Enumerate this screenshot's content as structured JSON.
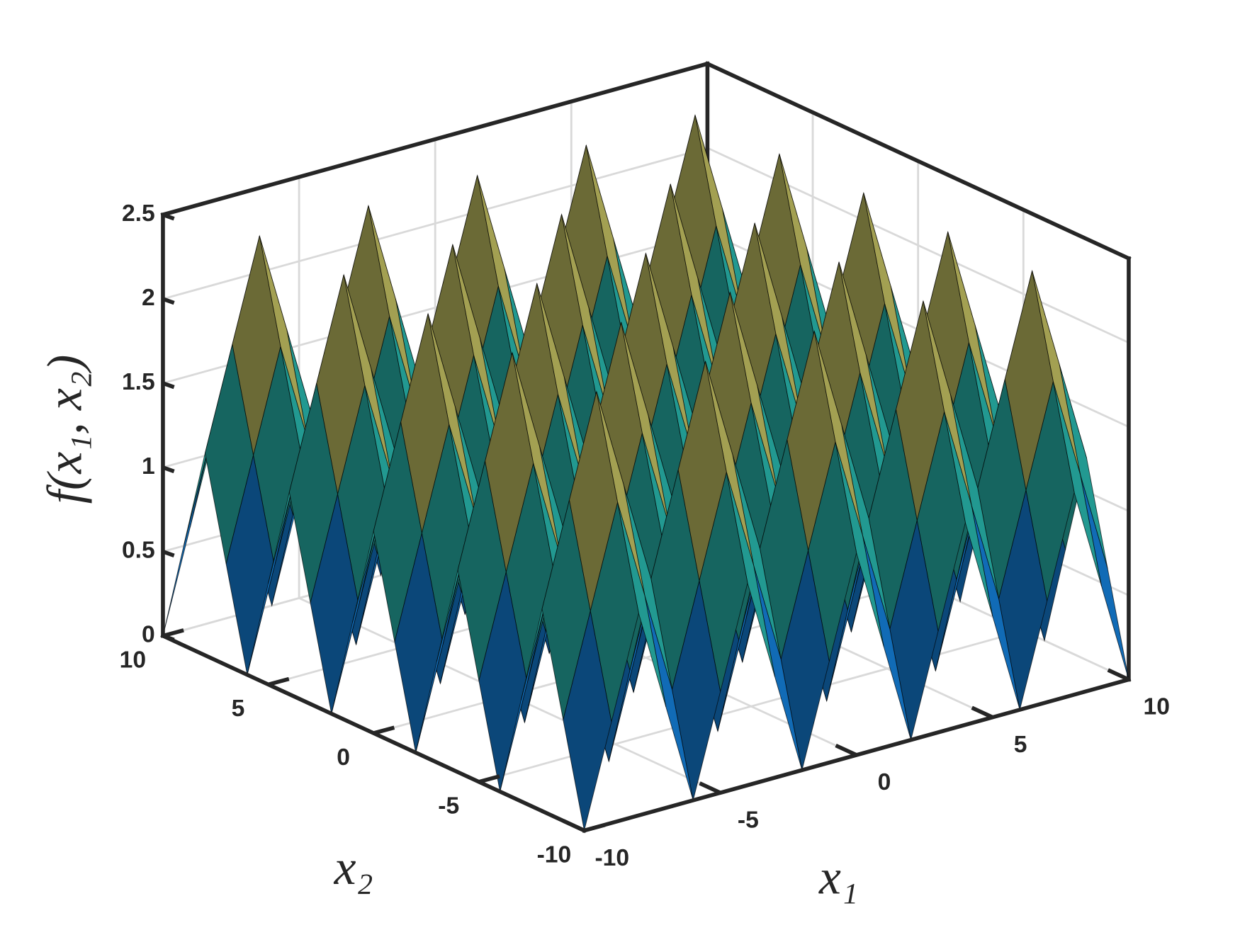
{
  "chart_data": {
    "type": "surface",
    "x1": [
      -10,
      -9,
      -8,
      -7,
      -6,
      -5,
      -4,
      -3,
      -2,
      -1,
      0,
      1,
      2,
      3,
      4,
      5,
      6,
      7,
      8,
      9,
      10
    ],
    "x2": [
      -10,
      -9,
      -8,
      -7,
      -6,
      -5,
      -4,
      -3,
      -2,
      -1,
      0,
      1,
      2,
      3,
      4,
      5,
      6,
      7,
      8,
      9,
      10
    ],
    "z": [
      [
        0,
        0.6,
        1.2,
        0.6,
        0,
        0.6,
        1.2,
        0.6,
        0,
        0.6,
        1.2,
        0.6,
        0,
        0.6,
        1.2,
        0.6,
        0,
        0.6,
        1.2,
        0.6,
        0
      ],
      [
        0.6,
        1.2,
        1.8,
        1.2,
        0.6,
        1.2,
        1.8,
        1.2,
        0.6,
        1.2,
        1.8,
        1.2,
        0.6,
        1.2,
        1.8,
        1.2,
        0.6,
        1.2,
        1.8,
        1.2,
        0.6
      ],
      [
        1.2,
        1.8,
        2.4,
        1.8,
        1.2,
        1.8,
        2.4,
        1.8,
        1.2,
        1.8,
        2.4,
        1.8,
        1.2,
        1.8,
        2.4,
        1.8,
        1.2,
        1.8,
        2.4,
        1.8,
        1.2
      ],
      [
        0.6,
        1.2,
        1.8,
        1.2,
        0.6,
        1.2,
        1.8,
        1.2,
        0.6,
        1.2,
        1.8,
        1.2,
        0.6,
        1.2,
        1.8,
        1.2,
        0.6,
        1.2,
        1.8,
        1.2,
        0.6
      ],
      [
        0,
        0.6,
        1.2,
        0.6,
        0,
        0.6,
        1.2,
        0.6,
        0,
        0.6,
        1.2,
        0.6,
        0,
        0.6,
        1.2,
        0.6,
        0,
        0.6,
        1.2,
        0.6,
        0
      ],
      [
        0.6,
        1.2,
        1.8,
        1.2,
        0.6,
        1.2,
        1.8,
        1.2,
        0.6,
        1.2,
        1.8,
        1.2,
        0.6,
        1.2,
        1.8,
        1.2,
        0.6,
        1.2,
        1.8,
        1.2,
        0.6
      ],
      [
        1.2,
        1.8,
        2.4,
        1.8,
        1.2,
        1.8,
        2.4,
        1.8,
        1.2,
        1.8,
        2.4,
        1.8,
        1.2,
        1.8,
        2.4,
        1.8,
        1.2,
        1.8,
        2.4,
        1.8,
        1.2
      ],
      [
        0.6,
        1.2,
        1.8,
        1.2,
        0.6,
        1.2,
        1.8,
        1.2,
        0.6,
        1.2,
        1.8,
        1.2,
        0.6,
        1.2,
        1.8,
        1.2,
        0.6,
        1.2,
        1.8,
        1.2,
        0.6
      ],
      [
        0,
        0.6,
        1.2,
        0.6,
        0,
        0.6,
        1.2,
        0.6,
        0,
        0.6,
        1.2,
        0.6,
        0,
        0.6,
        1.2,
        0.6,
        0,
        0.6,
        1.2,
        0.6,
        0
      ],
      [
        0.6,
        1.2,
        1.8,
        1.2,
        0.6,
        1.2,
        1.8,
        1.2,
        0.6,
        1.2,
        1.8,
        1.2,
        0.6,
        1.2,
        1.8,
        1.2,
        0.6,
        1.2,
        1.8,
        1.2,
        0.6
      ],
      [
        1.2,
        1.8,
        2.4,
        1.8,
        1.2,
        1.8,
        2.4,
        1.8,
        1.2,
        1.8,
        2.4,
        1.8,
        1.2,
        1.8,
        2.4,
        1.8,
        1.2,
        1.8,
        2.4,
        1.8,
        1.2
      ],
      [
        0.6,
        1.2,
        1.8,
        1.2,
        0.6,
        1.2,
        1.8,
        1.2,
        0.6,
        1.2,
        1.8,
        1.2,
        0.6,
        1.2,
        1.8,
        1.2,
        0.6,
        1.2,
        1.8,
        1.2,
        0.6
      ],
      [
        0,
        0.6,
        1.2,
        0.6,
        0,
        0.6,
        1.2,
        0.6,
        0,
        0.6,
        1.2,
        0.6,
        0,
        0.6,
        1.2,
        0.6,
        0,
        0.6,
        1.2,
        0.6,
        0
      ],
      [
        0.6,
        1.2,
        1.8,
        1.2,
        0.6,
        1.2,
        1.8,
        1.2,
        0.6,
        1.2,
        1.8,
        1.2,
        0.6,
        1.2,
        1.8,
        1.2,
        0.6,
        1.2,
        1.8,
        1.2,
        0.6
      ],
      [
        1.2,
        1.8,
        2.4,
        1.8,
        1.2,
        1.8,
        2.4,
        1.8,
        1.2,
        1.8,
        2.4,
        1.8,
        1.2,
        1.8,
        2.4,
        1.8,
        1.2,
        1.8,
        2.4,
        1.8,
        1.2
      ],
      [
        0.6,
        1.2,
        1.8,
        1.2,
        0.6,
        1.2,
        1.8,
        1.2,
        0.6,
        1.2,
        1.8,
        1.2,
        0.6,
        1.2,
        1.8,
        1.2,
        0.6,
        1.2,
        1.8,
        1.2,
        0.6
      ],
      [
        0,
        0.6,
        1.2,
        0.6,
        0,
        0.6,
        1.2,
        0.6,
        0,
        0.6,
        1.2,
        0.6,
        0,
        0.6,
        1.2,
        0.6,
        0,
        0.6,
        1.2,
        0.6,
        0
      ],
      [
        0.6,
        1.2,
        1.8,
        1.2,
        0.6,
        1.2,
        1.8,
        1.2,
        0.6,
        1.2,
        1.8,
        1.2,
        0.6,
        1.2,
        1.8,
        1.2,
        0.6,
        1.2,
        1.8,
        1.2,
        0.6
      ],
      [
        1.2,
        1.8,
        2.4,
        1.8,
        1.2,
        1.8,
        2.4,
        1.8,
        1.2,
        1.8,
        2.4,
        1.8,
        1.2,
        1.8,
        2.4,
        1.8,
        1.2,
        1.8,
        2.4,
        1.8,
        1.2
      ],
      [
        0.6,
        1.2,
        1.8,
        1.2,
        0.6,
        1.2,
        1.8,
        1.2,
        0.6,
        1.2,
        1.8,
        1.2,
        0.6,
        1.2,
        1.8,
        1.2,
        0.6,
        1.2,
        1.8,
        1.2,
        0.6
      ],
      [
        0,
        0.6,
        1.2,
        0.6,
        0,
        0.6,
        1.2,
        0.6,
        0,
        0.6,
        1.2,
        0.6,
        0,
        0.6,
        1.2,
        0.6,
        0,
        0.6,
        1.2,
        0.6,
        0
      ]
    ],
    "x1lim": [
      -10,
      10
    ],
    "x1ticks": [
      -10,
      -5,
      0,
      5,
      10
    ],
    "x2lim": [
      -10,
      10
    ],
    "x2ticks": [
      -10,
      -5,
      0,
      5,
      10
    ],
    "zlim": [
      0,
      2.5
    ],
    "zticks": [
      0,
      0.5,
      1,
      1.5,
      2,
      2.5
    ],
    "xlabel": "x₁",
    "ylabel": "x₂",
    "zlabel": "f(x₁, x₂)",
    "grid": true,
    "colormap": [
      "#352a87",
      "#0f5cdd",
      "#1481d6",
      "#06a4ca",
      "#2eb7a4",
      "#87bf77",
      "#d1bb59",
      "#fec832",
      "#f9fb0e"
    ],
    "edgecolor": "#000000"
  }
}
